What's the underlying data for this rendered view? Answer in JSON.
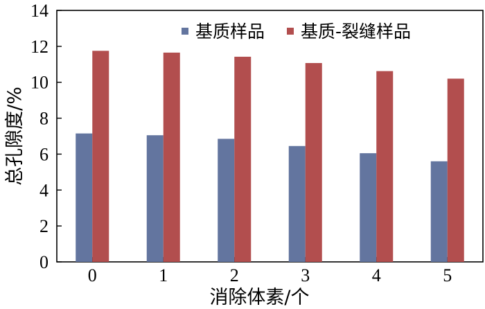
{
  "chart_data": {
    "type": "bar",
    "categories": [
      "0",
      "1",
      "2",
      "3",
      "4",
      "5"
    ],
    "series": [
      {
        "name": "基质样品",
        "color": "#63759f",
        "values": [
          7.15,
          7.05,
          6.85,
          6.45,
          6.05,
          5.6
        ]
      },
      {
        "name": "基质-裂缝样品",
        "color": "#b24e4e",
        "values": [
          11.75,
          11.65,
          11.42,
          11.07,
          10.62,
          10.2
        ]
      }
    ],
    "xlabel": "消除体素/个",
    "ylabel": "总孔隙度/%",
    "ylim": [
      0,
      14
    ],
    "yticks": [
      "0",
      "2",
      "4",
      "6",
      "8",
      "10",
      "12",
      "14"
    ],
    "grid": false,
    "legend_position": "top-right"
  }
}
